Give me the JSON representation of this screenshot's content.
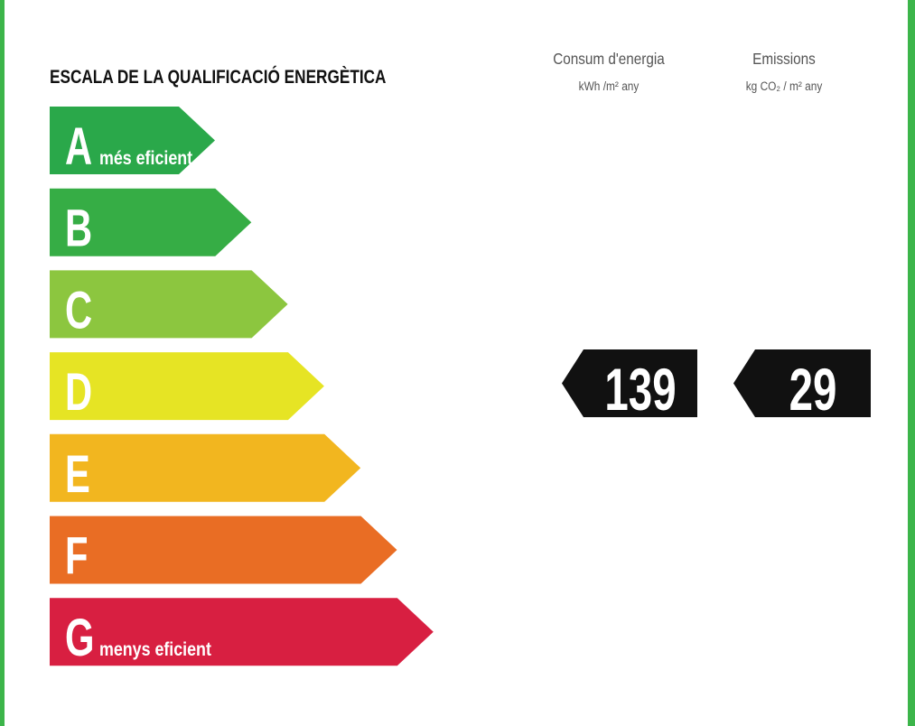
{
  "title": "ESCALA DE LA QUALIFICACIÓ ENERGÈTICA",
  "columns": [
    {
      "header": "Consum d'energia",
      "unit": "kWh /m² any",
      "value": "139"
    },
    {
      "header": "Emissions",
      "unit": "kg CO₂ / m² any",
      "value": "29"
    }
  ],
  "ratings": [
    {
      "letter": "A",
      "caption": "més eficient",
      "color": "#2aa84a"
    },
    {
      "letter": "B",
      "color": "#36ad45"
    },
    {
      "letter": "C",
      "color": "#8cc63f"
    },
    {
      "letter": "D",
      "color": "#e6e424"
    },
    {
      "letter": "E",
      "color": "#f2b61f"
    },
    {
      "letter": "F",
      "color": "#e96d24"
    },
    {
      "letter": "G",
      "caption": "menys eficient",
      "color": "#d81f41"
    }
  ]
}
